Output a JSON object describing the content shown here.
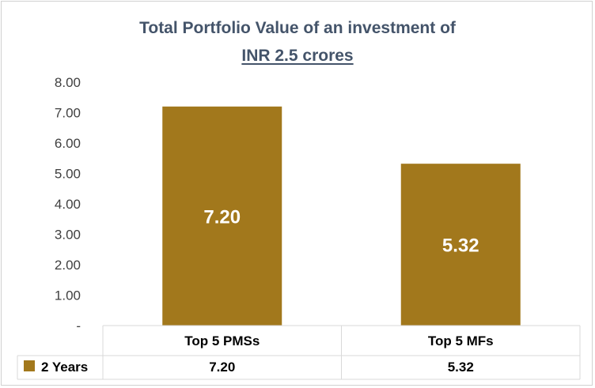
{
  "chart_data": {
    "type": "bar",
    "title": "Total Portfolio Value of an investment of",
    "subtitle": "INR 2.5 crores",
    "categories": [
      "Top 5 PMSs",
      "Top 5 MFs"
    ],
    "series": [
      {
        "name": "2 Years",
        "values": [
          7.2,
          5.32
        ],
        "labels": [
          "7.20",
          "5.32"
        ],
        "color": "#a2781c"
      }
    ],
    "ylim": [
      0,
      8
    ],
    "yticks": [
      "-",
      "1.00",
      "2.00",
      "3.00",
      "4.00",
      "5.00",
      "6.00",
      "7.00",
      "8.00"
    ],
    "grid": false,
    "legend": "data table below chart",
    "xlabel": "",
    "ylabel": ""
  }
}
